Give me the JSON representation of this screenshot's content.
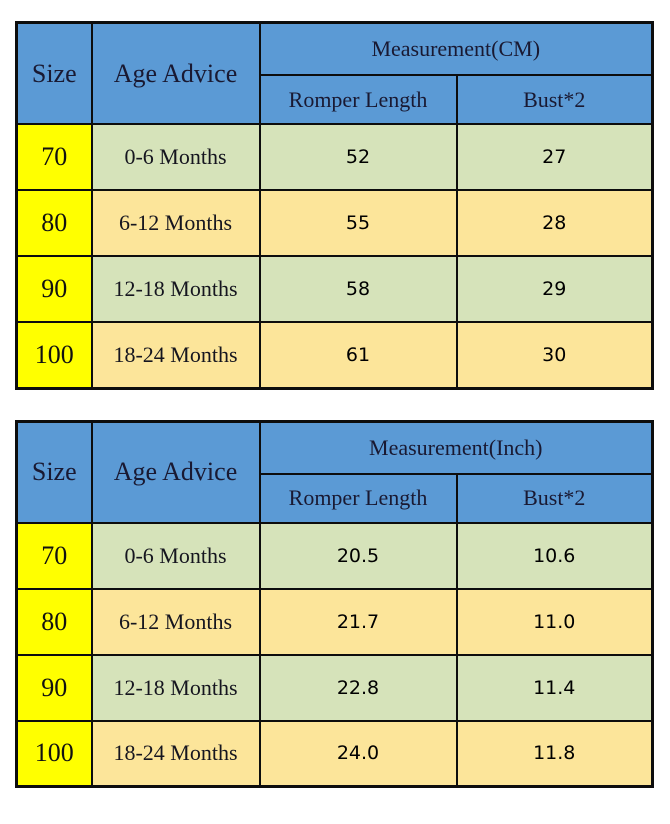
{
  "colors": {
    "header_blue": "#5b9ad5",
    "size_column_yellow": "#ffff00",
    "row_green": "#d6e3ba",
    "row_tan": "#fce59a",
    "border_black": "#0d0d0d",
    "header_text": "#191932"
  },
  "chart_data": [
    {
      "type": "table",
      "title": "Measurement(CM)",
      "header": {
        "size": "Size",
        "age": "Age Advice",
        "measurement": "Measurement(CM)",
        "sub1": "Romper Length",
        "sub2": "Bust*2"
      },
      "rows": [
        {
          "size": "70",
          "age": "0-6 Months",
          "length": "52",
          "bust": "27"
        },
        {
          "size": "80",
          "age": "6-12 Months",
          "length": "55",
          "bust": "28"
        },
        {
          "size": "90",
          "age": "12-18 Months",
          "length": "58",
          "bust": "29"
        },
        {
          "size": "100",
          "age": "18-24 Months",
          "length": "61",
          "bust": "30"
        }
      ]
    },
    {
      "type": "table",
      "title": "Measurement(Inch)",
      "header": {
        "size": "Size",
        "age": "Age Advice",
        "measurement": "Measurement(Inch)",
        "sub1": "Romper Length",
        "sub2": "Bust*2"
      },
      "rows": [
        {
          "size": "70",
          "age": "0-6 Months",
          "length": "20.5",
          "bust": "10.6"
        },
        {
          "size": "80",
          "age": "6-12 Months",
          "length": "21.7",
          "bust": "11.0"
        },
        {
          "size": "90",
          "age": "12-18 Months",
          "length": "22.8",
          "bust": "11.4"
        },
        {
          "size": "100",
          "age": "18-24 Months",
          "length": "24.0",
          "bust": "11.8"
        }
      ]
    }
  ]
}
